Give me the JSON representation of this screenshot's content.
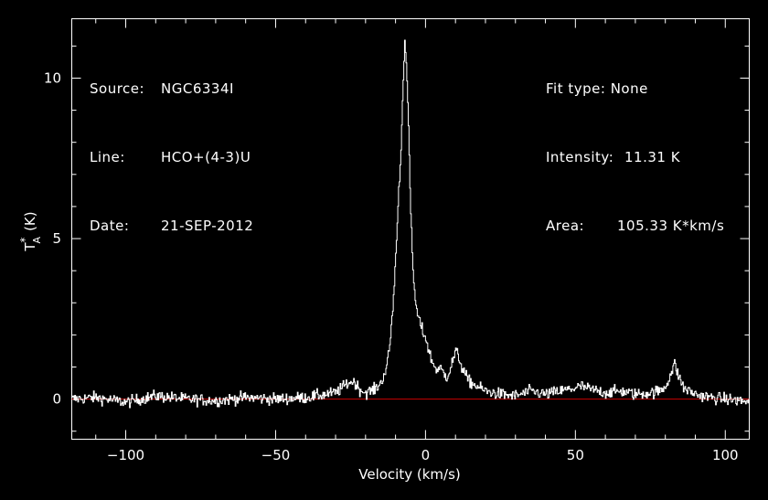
{
  "header_left": {
    "source_label": "Source:",
    "source_value": "NGC6334I",
    "line_label": "Line:",
    "line_value": "HCO+(4-3)U",
    "date_label": "Date:",
    "date_value": "21-SEP-2012"
  },
  "header_right": {
    "fit_label": "Fit type:",
    "fit_value": "None",
    "intensity_label": "Intensity:",
    "intensity_value": "11.31 K",
    "area_label": "Area:",
    "area_value": "105.33 K*km/s"
  },
  "colors": {
    "background": "#000000",
    "spectrum": "#ffffff",
    "baseline": "#cc0000",
    "axes": "#ffffff"
  },
  "chart_data": {
    "type": "line",
    "xlabel": "Velocity (km/s)",
    "ylabel_main": "T",
    "ylabel_sub": "A",
    "ylabel_sup": "*",
    "ylabel_unit": "(K)",
    "xlim": [
      -118,
      108
    ],
    "ylim": [
      -1.25,
      11.85
    ],
    "x_ticks": [
      -100,
      -50,
      0,
      50,
      100
    ],
    "x_tick_labels": [
      "−100",
      "−50",
      "0",
      "50",
      "100"
    ],
    "y_ticks": [
      0,
      5,
      10
    ],
    "y_tick_labels": [
      "0",
      "5",
      "10"
    ],
    "baseline": 0,
    "peak_intensity": 11.31,
    "series": [
      {
        "x": [
          -118,
          -110,
          -100,
          -90,
          -80,
          -70,
          -60,
          -50,
          -40,
          -30,
          -26,
          -24,
          -22,
          -20,
          -17,
          -15,
          -13,
          -12,
          -11,
          -10,
          -9,
          -8.5,
          -8,
          -7.5,
          -7,
          -6.5,
          -6,
          -5.5,
          -5,
          -4.5,
          -4,
          -3,
          -2,
          -1,
          0,
          1,
          2,
          3,
          4,
          5,
          6,
          7,
          8,
          9,
          10,
          11,
          12,
          13,
          14,
          16,
          18,
          20,
          25,
          30,
          35,
          40,
          45,
          50,
          52,
          55,
          60,
          65,
          70,
          75,
          78,
          80,
          82,
          83,
          84,
          86,
          90,
          95,
          100,
          105,
          108
        ],
        "y": [
          0.0,
          0.05,
          -0.1,
          0.1,
          0.0,
          -0.05,
          0.05,
          0.0,
          0.05,
          0.2,
          0.5,
          0.55,
          0.3,
          0.2,
          0.3,
          0.5,
          1.0,
          1.7,
          2.8,
          4.5,
          6.5,
          7.3,
          8.5,
          10.0,
          11.31,
          10.5,
          9.2,
          7.5,
          5.8,
          4.5,
          3.6,
          2.7,
          2.4,
          2.1,
          1.9,
          1.5,
          1.2,
          1.0,
          0.9,
          0.95,
          0.8,
          0.7,
          0.9,
          1.2,
          1.5,
          1.3,
          1.0,
          0.8,
          0.6,
          0.45,
          0.35,
          0.25,
          0.15,
          0.1,
          0.25,
          0.15,
          0.25,
          0.35,
          0.4,
          0.3,
          0.2,
          0.25,
          0.15,
          0.2,
          0.25,
          0.4,
          0.85,
          1.1,
          0.8,
          0.35,
          0.15,
          0.05,
          0.0,
          -0.05,
          -0.1
        ]
      }
    ]
  }
}
